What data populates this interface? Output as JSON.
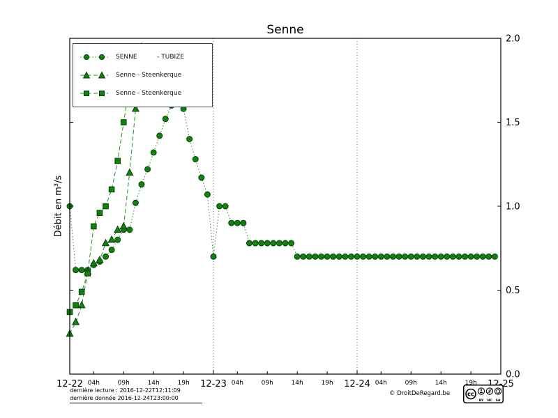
{
  "title": "Senne",
  "ylabel": "Débit en m³/s",
  "colors": {
    "line": "#2a8c2a",
    "marker_fill": "#0f820f",
    "marker_edge": "#053f05",
    "axis": "#000000",
    "grid": "#444444"
  },
  "legend": {
    "items": [
      {
        "label": "SENNE          - TUBIZE",
        "marker": "circle",
        "line": "dotted"
      },
      {
        "label": "Senne - Steenkerque",
        "marker": "triangle",
        "line": "dashed"
      },
      {
        "label": "Senne - Steenkerque",
        "marker": "square",
        "line": "dashed"
      }
    ]
  },
  "footer": {
    "line1": "dernière lecture : 2016-12-22T12:11:09",
    "line2": "dernière donnée  2016-12-24T23:00:00",
    "copyright": "© DroitDeRegard.be",
    "cc_badge": {
      "cc": "cc",
      "by": "BY",
      "nc": "NC",
      "sa": "SA",
      "dollar": "$"
    }
  },
  "chart_data": {
    "type": "line",
    "title": "Senne",
    "ylabel": "Débit en m³/s",
    "ylim": [
      0.0,
      2.0
    ],
    "yticks": [
      0.0,
      0.5,
      1.0,
      1.5,
      2.0
    ],
    "x_unit": "hours from 2016-12-22 00:00",
    "xlim": [
      0,
      72
    ],
    "grid": "vertical-dotted-at-day-boundaries",
    "legend_position": "upper-left",
    "xticks": [
      {
        "pos": 0,
        "label": "12-22",
        "day": true,
        "grid": false
      },
      {
        "pos": 4,
        "label": "04h"
      },
      {
        "pos": 9,
        "label": "09h"
      },
      {
        "pos": 14,
        "label": "14h"
      },
      {
        "pos": 19,
        "label": "19h"
      },
      {
        "pos": 24,
        "label": "12-23",
        "day": true,
        "grid": true
      },
      {
        "pos": 28,
        "label": "04h"
      },
      {
        "pos": 33,
        "label": "09h"
      },
      {
        "pos": 38,
        "label": "14h"
      },
      {
        "pos": 43,
        "label": "19h"
      },
      {
        "pos": 48,
        "label": "12-24",
        "day": true,
        "grid": true
      },
      {
        "pos": 52,
        "label": "04h"
      },
      {
        "pos": 57,
        "label": "09h"
      },
      {
        "pos": 62,
        "label": "14h"
      },
      {
        "pos": 67,
        "label": "19h"
      },
      {
        "pos": 72,
        "label": "12-25",
        "day": true,
        "grid": false
      }
    ],
    "series": [
      {
        "name": "SENNE - TUBIZE",
        "marker": "circle",
        "line": "dotted",
        "x": [
          0,
          1,
          2,
          3,
          4,
          5,
          6,
          7,
          8,
          9,
          10,
          11,
          12,
          13,
          14,
          15,
          16,
          17,
          18,
          19,
          20,
          21,
          22,
          23,
          24,
          25,
          26,
          27,
          28,
          29,
          30,
          31,
          32,
          33,
          34,
          35,
          36,
          37,
          38,
          39,
          40,
          41,
          42,
          43,
          44,
          45,
          46,
          47,
          48,
          49,
          50,
          51,
          52,
          53,
          54,
          55,
          56,
          57,
          58,
          59,
          60,
          61,
          62,
          63,
          64,
          65,
          66,
          67,
          68,
          69,
          70,
          71
        ],
        "y": [
          1.0,
          0.62,
          0.62,
          0.62,
          0.65,
          0.67,
          0.7,
          0.74,
          0.8,
          0.86,
          0.86,
          1.02,
          1.13,
          1.22,
          1.32,
          1.42,
          1.52,
          1.6,
          1.65,
          1.58,
          1.4,
          1.28,
          1.17,
          1.07,
          0.7,
          1.0,
          1.0,
          0.9,
          0.9,
          0.9,
          0.78,
          0.78,
          0.78,
          0.78,
          0.78,
          0.78,
          0.78,
          0.78,
          0.7,
          0.7,
          0.7,
          0.7,
          0.7,
          0.7,
          0.7,
          0.7,
          0.7,
          0.7,
          0.7,
          0.7,
          0.7,
          0.7,
          0.7,
          0.7,
          0.7,
          0.7,
          0.7,
          0.7,
          0.7,
          0.7,
          0.7,
          0.7,
          0.7,
          0.7,
          0.7,
          0.7,
          0.7,
          0.7,
          0.7,
          0.7,
          0.7,
          0.7
        ]
      },
      {
        "name": "Senne - Steenkerque",
        "marker": "triangle",
        "line": "dashed",
        "x": [
          0,
          1,
          2,
          3,
          4,
          5,
          6,
          7,
          8,
          9,
          10,
          11,
          12
        ],
        "y": [
          0.24,
          0.31,
          0.41,
          0.61,
          0.66,
          0.68,
          0.78,
          0.8,
          0.86,
          0.88,
          1.2,
          1.58,
          1.95
        ]
      },
      {
        "name": "Senne - Steenkerque",
        "marker": "square",
        "line": "dashed",
        "x": [
          0,
          1,
          2,
          3,
          4,
          5,
          6,
          7,
          8,
          9,
          10,
          11
        ],
        "y": [
          0.37,
          0.41,
          0.49,
          0.6,
          0.88,
          0.96,
          1.0,
          1.1,
          1.27,
          1.5,
          1.72,
          1.95
        ]
      }
    ]
  }
}
